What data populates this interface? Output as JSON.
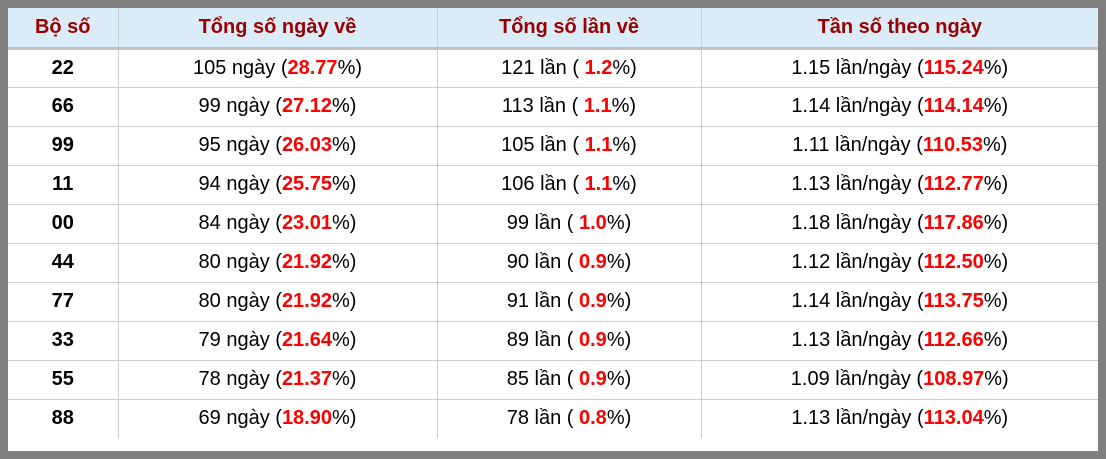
{
  "colors": {
    "frame_gray": "#7f7f7f",
    "header_bg": "#d9ecf7",
    "header_text": "#990000",
    "highlight_red": "#ff0000",
    "grid_line": "#cccccc",
    "header_divider": "#c0c0c0",
    "row_bg": "#ffffff"
  },
  "table": {
    "headers": [
      "Bộ số",
      "Tổng số ngày về",
      "Tổng số lần về",
      "Tần số theo ngày"
    ],
    "percent_close": "%)",
    "rows": [
      {
        "pair": "22",
        "days_prefix": "105 ngày (",
        "days_pct": "28.77",
        "times_prefix": "121 lần ( ",
        "times_pct": "1.2",
        "freq_prefix": "1.15 lần/ngày (",
        "freq_pct": "115.24"
      },
      {
        "pair": "66",
        "days_prefix": "99 ngày (",
        "days_pct": "27.12",
        "times_prefix": "113 lần ( ",
        "times_pct": "1.1",
        "freq_prefix": "1.14 lần/ngày (",
        "freq_pct": "114.14"
      },
      {
        "pair": "99",
        "days_prefix": "95 ngày (",
        "days_pct": "26.03",
        "times_prefix": "105 lần ( ",
        "times_pct": "1.1",
        "freq_prefix": "1.11 lần/ngày (",
        "freq_pct": "110.53"
      },
      {
        "pair": "11",
        "days_prefix": "94 ngày (",
        "days_pct": "25.75",
        "times_prefix": "106 lần ( ",
        "times_pct": "1.1",
        "freq_prefix": "1.13 lần/ngày (",
        "freq_pct": "112.77"
      },
      {
        "pair": "00",
        "days_prefix": "84 ngày (",
        "days_pct": "23.01",
        "times_prefix": "99 lần ( ",
        "times_pct": "1.0",
        "freq_prefix": "1.18 lần/ngày (",
        "freq_pct": "117.86"
      },
      {
        "pair": "44",
        "days_prefix": "80 ngày (",
        "days_pct": "21.92",
        "times_prefix": "90 lần ( ",
        "times_pct": "0.9",
        "freq_prefix": "1.12 lần/ngày (",
        "freq_pct": "112.50"
      },
      {
        "pair": "77",
        "days_prefix": "80 ngày (",
        "days_pct": "21.92",
        "times_prefix": "91 lần ( ",
        "times_pct": "0.9",
        "freq_prefix": "1.14 lần/ngày (",
        "freq_pct": "113.75"
      },
      {
        "pair": "33",
        "days_prefix": "79 ngày (",
        "days_pct": "21.64",
        "times_prefix": "89 lần ( ",
        "times_pct": "0.9",
        "freq_prefix": "1.13 lần/ngày (",
        "freq_pct": "112.66"
      },
      {
        "pair": "55",
        "days_prefix": "78 ngày (",
        "days_pct": "21.37",
        "times_prefix": "85 lần ( ",
        "times_pct": "0.9",
        "freq_prefix": "1.09 lần/ngày (",
        "freq_pct": "108.97"
      },
      {
        "pair": "88",
        "days_prefix": "69 ngày (",
        "days_pct": "18.90",
        "times_prefix": "78 lần ( ",
        "times_pct": "0.8",
        "freq_prefix": "1.13 lần/ngày (",
        "freq_pct": "113.04"
      }
    ]
  }
}
